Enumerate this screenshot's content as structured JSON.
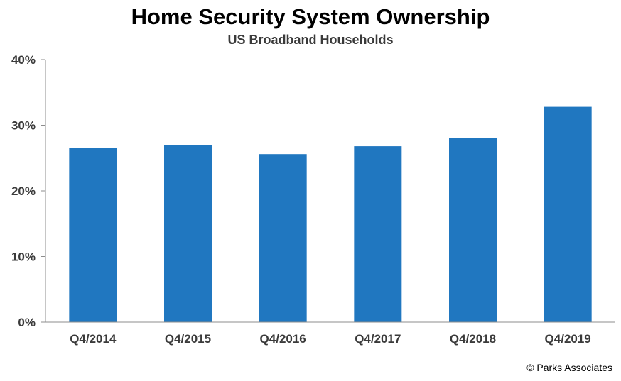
{
  "chart_data": {
    "type": "bar",
    "title": "Home Security System Ownership",
    "subtitle": "US Broadband Households",
    "categories": [
      "Q4/2014",
      "Q4/2015",
      "Q4/2016",
      "Q4/2017",
      "Q4/2018",
      "Q4/2019"
    ],
    "values": [
      26.5,
      27,
      25.6,
      26.8,
      28,
      32.8
    ],
    "value_unit": "%",
    "yticks": [
      "0%",
      "10%",
      "20%",
      "30%",
      "40%"
    ],
    "ylim": [
      0,
      40
    ],
    "bar_color": "#2077c0",
    "grid": false,
    "legend": "none"
  },
  "footer": {
    "copyright": "© Parks Associates"
  }
}
